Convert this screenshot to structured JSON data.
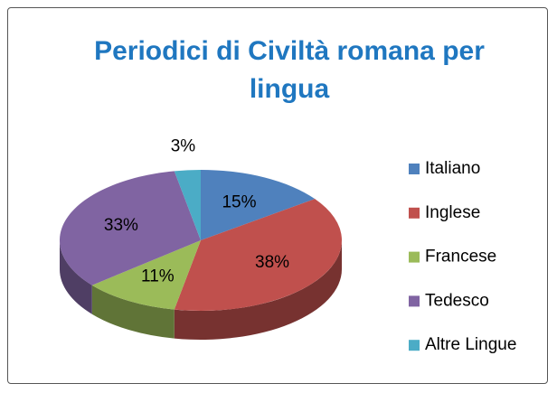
{
  "chart_data": {
    "type": "pie3d",
    "title": "Periodici di Civiltà romana per lingua",
    "categories": [
      "Italiano",
      "Inglese",
      "Francese",
      "Tedesco",
      "Altre Lingue"
    ],
    "values": [
      15,
      38,
      11,
      33,
      3
    ],
    "value_labels": [
      "15%",
      "38%",
      "11%",
      "33%",
      "3%"
    ],
    "colors": [
      "#4f81bd",
      "#c0504d",
      "#9bbb59",
      "#8064a2",
      "#4bacc6"
    ],
    "legend": "right"
  }
}
